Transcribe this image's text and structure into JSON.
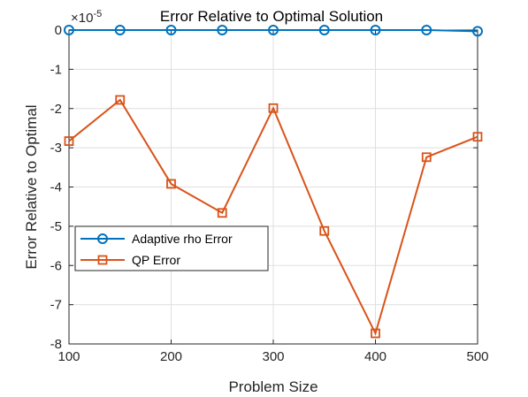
{
  "chart_data": {
    "type": "line",
    "title": "Error Relative to Optimal Solution",
    "xlabel": "Problem Size",
    "ylabel": "Error Relative to Optimal",
    "exponent_base": "×10",
    "exponent_power": "-5",
    "x": [
      100,
      150,
      200,
      250,
      300,
      350,
      400,
      450,
      500
    ],
    "xlim": [
      100,
      500
    ],
    "ylim": [
      -8,
      0
    ],
    "xticks": [
      100,
      200,
      300,
      400,
      500
    ],
    "yticks": [
      0,
      -1,
      -2,
      -3,
      -4,
      -5,
      -6,
      -7,
      -8
    ],
    "grid": true,
    "legend_position": "lower-left",
    "series": [
      {
        "name": "Adaptive rho Error",
        "marker": "circle",
        "color": "#0072BD",
        "values": [
          0,
          0,
          0,
          0,
          0,
          0,
          0,
          0,
          -0.03
        ]
      },
      {
        "name": "QP Error",
        "marker": "square",
        "color": "#D95319",
        "values": [
          -2.83,
          -1.78,
          -3.92,
          -4.66,
          -1.99,
          -5.12,
          -7.73,
          -3.24,
          -2.72
        ]
      }
    ]
  }
}
